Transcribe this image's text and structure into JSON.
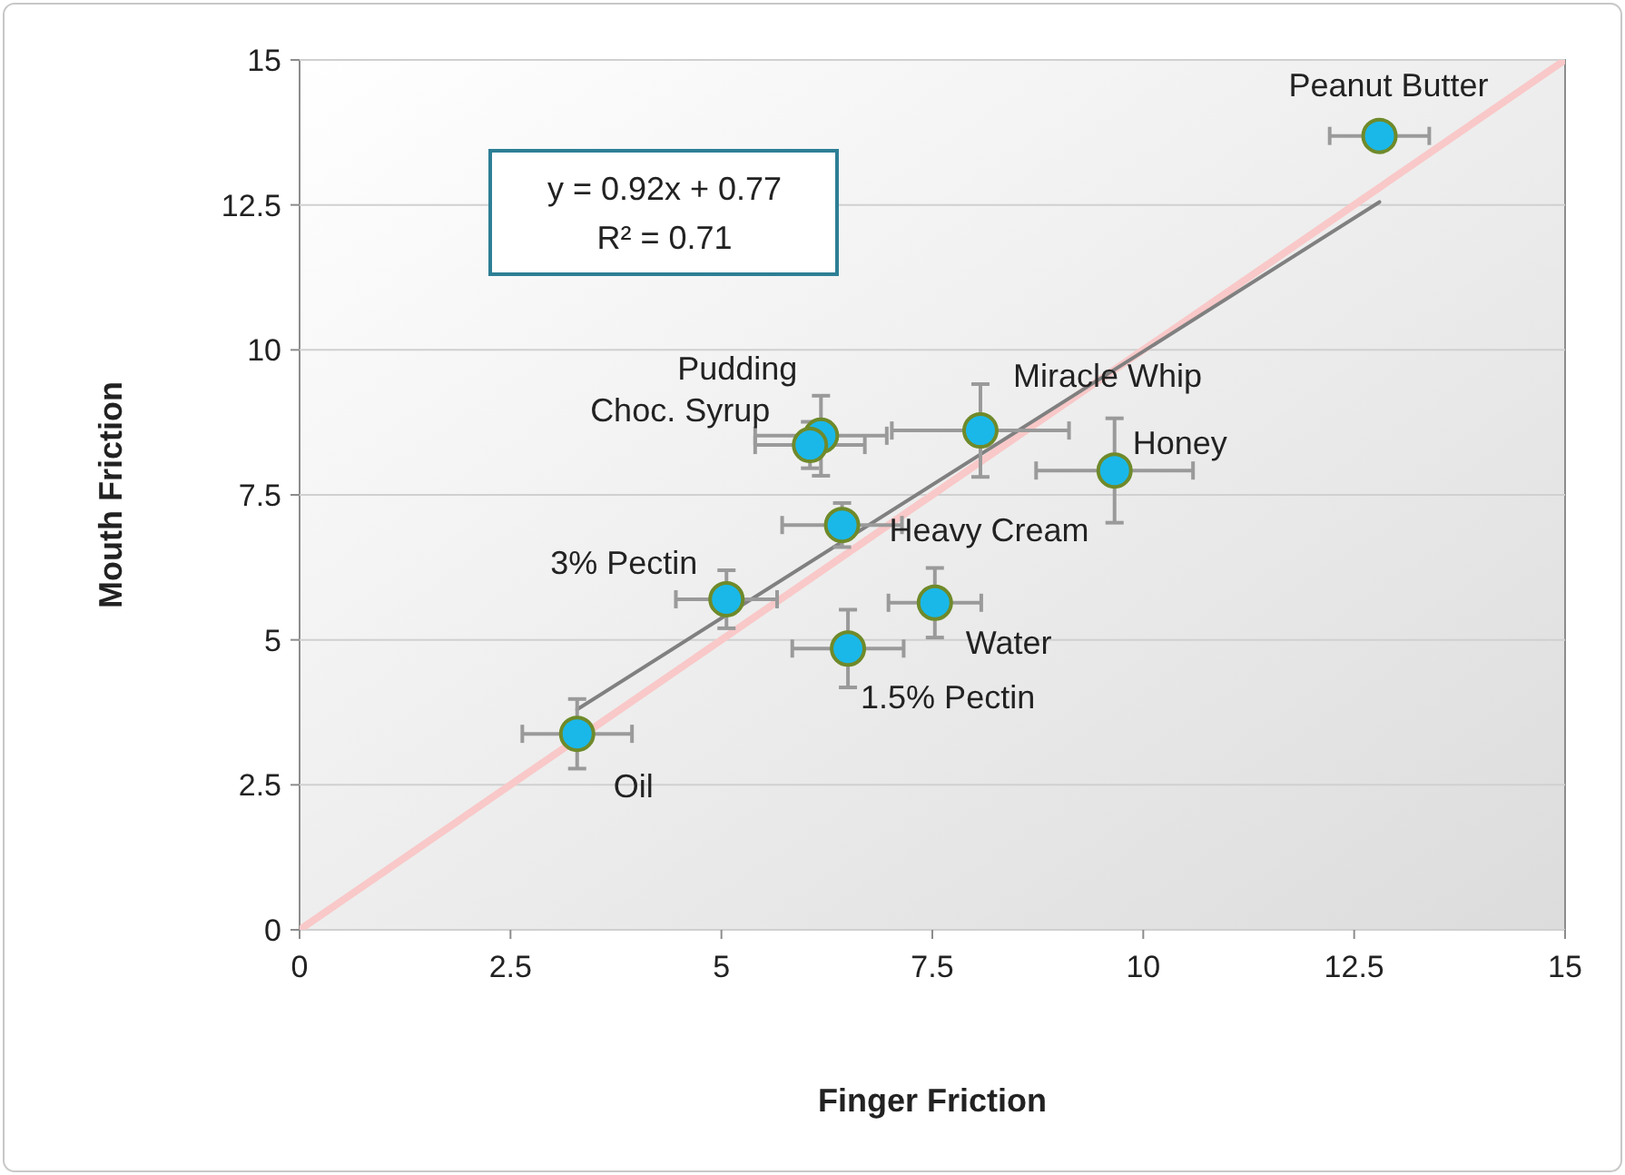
{
  "chart_data": {
    "type": "scatter",
    "xlabel": "Finger Friction",
    "ylabel": "Mouth Friction",
    "xlim": [
      0,
      15
    ],
    "ylim": [
      0,
      15
    ],
    "xticks": [
      0,
      2.5,
      5,
      7.5,
      10,
      12.5,
      15
    ],
    "yticks": [
      0,
      2.5,
      5,
      7.5,
      10,
      12.5,
      15
    ],
    "grid": "y",
    "series": [
      {
        "type": "line",
        "color": "#f9c8c8",
        "x": [
          0,
          15
        ],
        "values": [
          0,
          15
        ],
        "marker": "none"
      },
      {
        "type": "line",
        "color": "#808080",
        "x": [
          3.29,
          12.8
        ],
        "values": [
          3.8,
          12.55
        ],
        "marker": "none"
      },
      {
        "color": "#1ab8e8",
        "marker": "circle",
        "x": [
          12.8,
          6.18,
          6.05,
          8.07,
          9.66,
          6.43,
          5.06,
          7.53,
          6.5,
          3.29
        ],
        "values": [
          13.69,
          8.52,
          8.36,
          8.61,
          7.92,
          6.98,
          5.7,
          5.64,
          4.85,
          3.38
        ],
        "xerrors": [
          0.59,
          0.78,
          0.65,
          1.05,
          0.93,
          0.71,
          0.6,
          0.55,
          0.66,
          0.65
        ],
        "errors": [
          null,
          0.69,
          0.4,
          0.8,
          0.9,
          0.38,
          0.5,
          0.6,
          0.67,
          0.6
        ]
      }
    ],
    "annotations": [
      "y = 0.92x + 0.77",
      "R² = 0.71",
      {
        "text": "Peanut Butter",
        "x": 12.8,
        "y": 13.69
      },
      {
        "text": "Pudding",
        "x": 6.18,
        "y": 8.52
      },
      {
        "text": "Choc. Syrup",
        "x": 6.05,
        "y": 8.36
      },
      {
        "text": "Miracle Whip",
        "x": 8.07,
        "y": 8.61
      },
      {
        "text": "Honey",
        "x": 9.66,
        "y": 7.92
      },
      {
        "text": "Heavy Cream",
        "x": 6.43,
        "y": 6.98
      },
      {
        "text": "3% Pectin",
        "x": 5.06,
        "y": 5.7
      },
      {
        "text": "Water",
        "x": 7.53,
        "y": 5.64
      },
      {
        "text": "1.5% Pectin",
        "x": 6.5,
        "y": 4.85
      },
      {
        "text": "Oil",
        "x": 3.29,
        "y": 3.38
      }
    ]
  }
}
